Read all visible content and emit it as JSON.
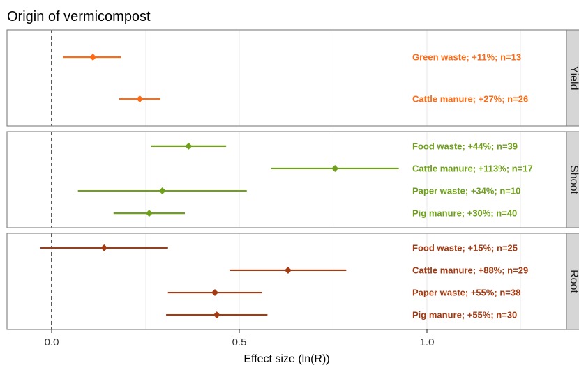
{
  "chart_data": {
    "type": "forest",
    "title": "Origin of vermicompost",
    "xlabel": "Effect size (ln(R))",
    "xlim": [
      -0.12,
      1.37
    ],
    "xticks": [
      0.0,
      0.5,
      1.0
    ],
    "xtick_labels": [
      "0.0",
      "0.5",
      "1.0"
    ],
    "reference_line": 0,
    "panels": [
      {
        "name": "Yield",
        "color": "#FF6A13",
        "rows": [
          {
            "label": "Green waste; +11%; n=13",
            "est": 0.11,
            "lo": 0.03,
            "hi": 0.185
          },
          {
            "label": "Cattle manure; +27%; n=26",
            "est": 0.235,
            "lo": 0.18,
            "hi": 0.29
          }
        ]
      },
      {
        "name": "Shoot",
        "color": "#6FA01C",
        "rows": [
          {
            "label": "Food waste; +44%; n=39",
            "est": 0.365,
            "lo": 0.265,
            "hi": 0.465
          },
          {
            "label": "Cattle manure; +113%; n=17",
            "est": 0.755,
            "lo": 0.585,
            "hi": 0.925
          },
          {
            "label": "Paper waste; +34%; n=10",
            "est": 0.295,
            "lo": 0.07,
            "hi": 0.52
          },
          {
            "label": "Pig manure; +30%; n=40",
            "est": 0.26,
            "lo": 0.165,
            "hi": 0.355
          }
        ]
      },
      {
        "name": "Root",
        "color": "#A33A12",
        "rows": [
          {
            "label": "Food waste; +15%; n=25",
            "est": 0.14,
            "lo": -0.03,
            "hi": 0.31
          },
          {
            "label": "Cattle manure; +88%; n=29",
            "est": 0.63,
            "lo": 0.475,
            "hi": 0.785
          },
          {
            "label": "Paper waste; +55%; n=38",
            "est": 0.435,
            "lo": 0.31,
            "hi": 0.56
          },
          {
            "label": "Pig manure; +55%; n=30",
            "est": 0.44,
            "lo": 0.305,
            "hi": 0.575
          }
        ]
      }
    ]
  }
}
